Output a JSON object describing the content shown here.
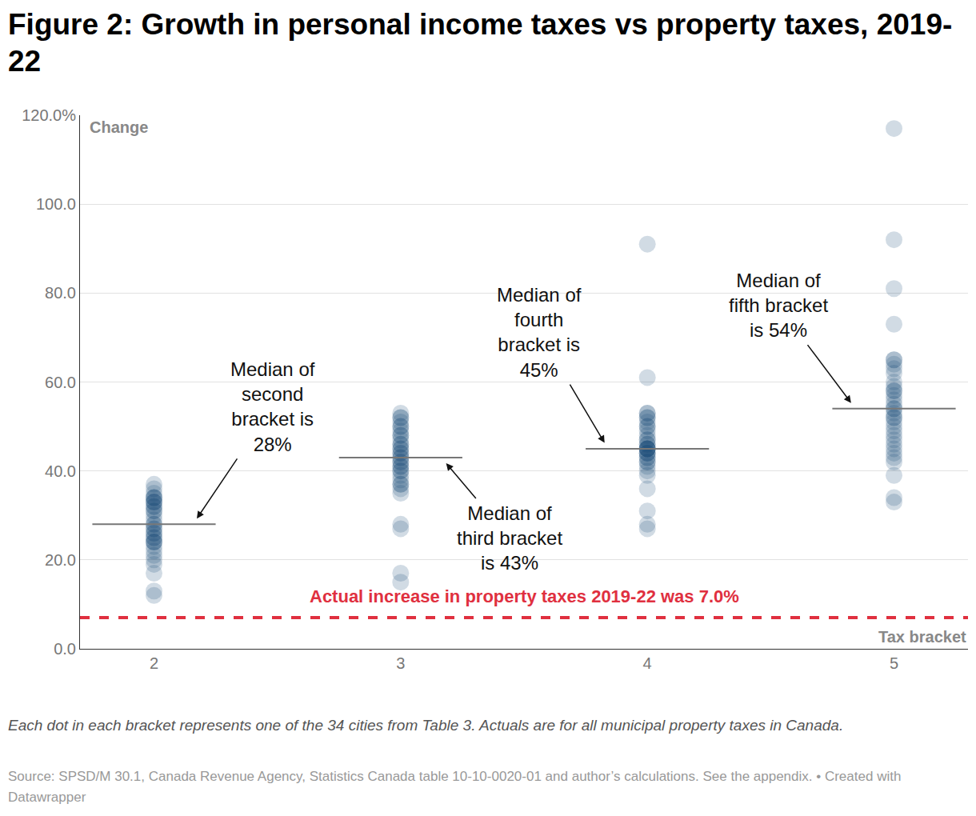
{
  "chart_data": {
    "type": "scatter",
    "title": "Figure 2: Growth in personal income taxes vs property taxes, 2019-22",
    "x": [
      2,
      3,
      4,
      5
    ],
    "values": [
      [
        12,
        13,
        17,
        19,
        20,
        21,
        22,
        23,
        24,
        24,
        24,
        25,
        25,
        26,
        26,
        27,
        27,
        28,
        28,
        29,
        30,
        31,
        31,
        32,
        32,
        33,
        33,
        33,
        34,
        34,
        34,
        35,
        36,
        37
      ],
      [
        15,
        17,
        27,
        28,
        35,
        36,
        37,
        37,
        38,
        39,
        40,
        40,
        41,
        41,
        42,
        42,
        43,
        43,
        44,
        44,
        45,
        45,
        46,
        46,
        47,
        48,
        48,
        49,
        50,
        50,
        51,
        52,
        52,
        53
      ],
      [
        27,
        28,
        31,
        36,
        39,
        40,
        41,
        42,
        42,
        43,
        43,
        44,
        44,
        44,
        45,
        45,
        45,
        45,
        45,
        46,
        46,
        47,
        47,
        48,
        49,
        50,
        50,
        51,
        52,
        52,
        53,
        53,
        61,
        91
      ],
      [
        33,
        34,
        39,
        42,
        43,
        44,
        45,
        46,
        47,
        48,
        49,
        50,
        51,
        52,
        52,
        53,
        54,
        54,
        55,
        56,
        57,
        58,
        58,
        59,
        60,
        62,
        63,
        64,
        65,
        65,
        73,
        81,
        92,
        117
      ]
    ],
    "medians": [
      28,
      43,
      45,
      54
    ],
    "median_labels": [
      "Median of second bracket is 28%",
      "Median of third bracket is 43%",
      "Median of fourth bracket is 45%",
      "Median of fifth bracket is 54%"
    ],
    "reference": {
      "value": 7.0,
      "label": "Actual increase in property taxes 2019-22 was 7.0%"
    },
    "xlabel": "Tax bracket",
    "ylabel": "Change",
    "xlim": [
      1.7,
      5.3
    ],
    "xticks": [
      2,
      3,
      4,
      5
    ],
    "ylim": [
      0,
      120
    ],
    "yticks": [
      {
        "value": 0,
        "label": "0.0"
      },
      {
        "value": 20,
        "label": "20.0"
      },
      {
        "value": 40,
        "label": "40.0"
      },
      {
        "value": 60,
        "label": "60.0"
      },
      {
        "value": 80,
        "label": "80.0"
      },
      {
        "value": 100,
        "label": "100.0"
      },
      {
        "value": 120,
        "label": "120.0%"
      }
    ],
    "grid": true,
    "color": "#174b78",
    "marker": "circle",
    "note": "Each dot in each bracket represents one of the 34 cities from Table 3. Actuals are for all municipal property taxes in Canada.",
    "source": "Source: SPSD/M 30.1, Canada Revenue Agency, Statistics Canada table 10-10-0020-01 and author’s calculations. See the appendix. • Created with Datawrapper"
  }
}
